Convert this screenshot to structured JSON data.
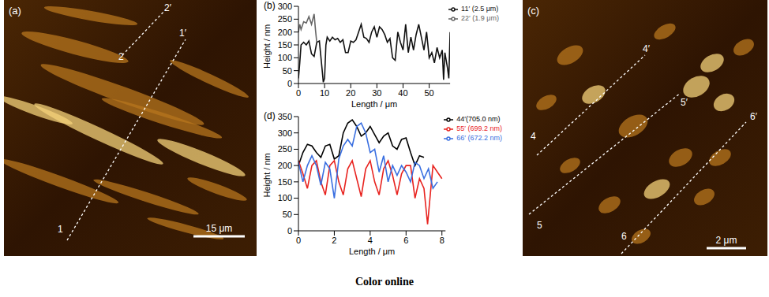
{
  "chart_data": [
    {
      "type": "line",
      "title": "(b)",
      "x_label": "Length / μm",
      "y_label": "Height / nm",
      "xlim": [
        0,
        58
      ],
      "xticks": [
        0,
        10,
        20,
        30,
        40,
        50
      ],
      "ylim": [
        0,
        300
      ],
      "yticks": [
        0,
        50,
        100,
        150,
        200,
        250,
        300
      ],
      "legend": "upper right",
      "grid": false,
      "series": [
        {
          "name": "11′ (2.5 μm)",
          "color": "#111111",
          "x": [
            0,
            0.5,
            1,
            2,
            3,
            4,
            5,
            6,
            7,
            8,
            9,
            9.5,
            10,
            10.5,
            11,
            12,
            13,
            14,
            15,
            16,
            17,
            18,
            19,
            20,
            21,
            22,
            23,
            24,
            25,
            26,
            27,
            28,
            29,
            30,
            31,
            32,
            33,
            34,
            35,
            36,
            37,
            38,
            39,
            40,
            41,
            42,
            43,
            44,
            45,
            46,
            47,
            48,
            49,
            50,
            51,
            52,
            53,
            54,
            55,
            55.5,
            56,
            57,
            57.5,
            58
          ],
          "values": [
            20,
            80,
            150,
            160,
            150,
            165,
            115,
            105,
            160,
            165,
            60,
            5,
            20,
            150,
            180,
            165,
            180,
            170,
            175,
            160,
            170,
            120,
            120,
            165,
            160,
            170,
            200,
            230,
            180,
            175,
            160,
            200,
            220,
            180,
            220,
            210,
            190,
            160,
            175,
            100,
            90,
            200,
            160,
            130,
            230,
            120,
            180,
            130,
            190,
            230,
            180,
            130,
            200,
            100,
            120,
            80,
            140,
            100,
            130,
            15,
            120,
            60,
            20,
            200
          ]
        },
        {
          "name": "22′ (1.9 μm)",
          "color": "#666666",
          "x": [
            0,
            0.5,
            1,
            2,
            3,
            4,
            5,
            6,
            6.5,
            7
          ],
          "values": [
            200,
            230,
            210,
            240,
            235,
            260,
            230,
            270,
            210,
            160
          ]
        }
      ]
    },
    {
      "type": "line",
      "title": "(d)",
      "x_label": "Length / μm",
      "y_label": "Height / nm",
      "xlim": [
        0,
        8.2
      ],
      "xticks": [
        0,
        2,
        4,
        6,
        8
      ],
      "ylim": [
        0,
        350
      ],
      "yticks": [
        0,
        50,
        100,
        150,
        200,
        250,
        300,
        350
      ],
      "legend": "upper right",
      "grid": false,
      "series": [
        {
          "name": "44′(705.0 nm)",
          "color": "#000000",
          "x": [
            0,
            0.25,
            0.5,
            0.75,
            1,
            1.25,
            1.5,
            1.75,
            2,
            2.25,
            2.5,
            2.75,
            3,
            3.25,
            3.5,
            3.75,
            4,
            4.25,
            4.5,
            4.75,
            5,
            5.25,
            5.5,
            5.75,
            6,
            6.25,
            6.5,
            6.75,
            7
          ],
          "values": [
            200,
            240,
            265,
            260,
            240,
            225,
            260,
            265,
            220,
            230,
            300,
            330,
            340,
            320,
            290,
            300,
            320,
            295,
            270,
            290,
            300,
            260,
            250,
            280,
            285,
            240,
            200,
            230,
            225
          ]
        },
        {
          "name": "55′ (699.2 nm)",
          "color": "#e8231f",
          "x": [
            0,
            0.25,
            0.5,
            0.75,
            1,
            1.25,
            1.5,
            1.75,
            2,
            2.25,
            2.5,
            2.75,
            3,
            3.25,
            3.5,
            3.75,
            4,
            4.25,
            4.5,
            4.75,
            5,
            5.25,
            5.5,
            5.75,
            6,
            6.25,
            6.5,
            6.75,
            7,
            7.2,
            7.5,
            7.75,
            8
          ],
          "values": [
            215,
            175,
            130,
            200,
            215,
            150,
            110,
            200,
            215,
            150,
            110,
            190,
            215,
            160,
            105,
            190,
            215,
            150,
            110,
            190,
            215,
            170,
            110,
            175,
            200,
            200,
            100,
            160,
            130,
            20,
            200,
            180,
            160
          ]
        },
        {
          "name": "66′ (672.2 nm)",
          "color": "#3a6fe0",
          "x": [
            0,
            0.25,
            0.5,
            0.75,
            1,
            1.25,
            1.5,
            1.75,
            2,
            2.25,
            2.5,
            2.75,
            3,
            3.25,
            3.5,
            3.75,
            4,
            4.25,
            4.5,
            4.75,
            5,
            5.25,
            5.5,
            5.75,
            6,
            6.25,
            6.5,
            6.75,
            7,
            7.25,
            7.5,
            7.75
          ],
          "values": [
            210,
            150,
            200,
            230,
            200,
            140,
            210,
            190,
            100,
            220,
            260,
            280,
            260,
            320,
            330,
            300,
            240,
            250,
            180,
            230,
            150,
            200,
            170,
            200,
            180,
            150,
            210,
            200,
            160,
            190,
            130,
            150
          ]
        }
      ]
    }
  ],
  "images": [
    {
      "label": "(a)",
      "profiles": [
        {
          "start": "1",
          "end": "1′"
        },
        {
          "start": "2",
          "end": "2′"
        }
      ],
      "scale_bar": "15 μm"
    },
    {
      "label": "(c)",
      "profiles": [
        {
          "start": "4",
          "end": "4′"
        },
        {
          "start": "5",
          "end": "5′"
        },
        {
          "start": "6",
          "end": "6′"
        }
      ],
      "scale_bar": "2 μm"
    }
  ],
  "caption": "Color online"
}
